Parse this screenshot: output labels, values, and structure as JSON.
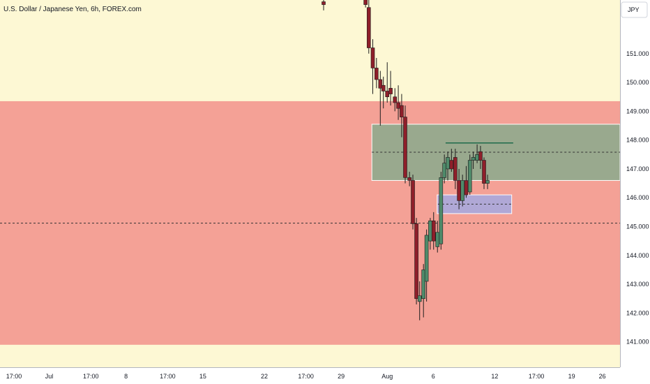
{
  "chart_data": {
    "type": "candlestick",
    "title": "U.S. Dollar / Japanese Yen, 6h, FOREX.com",
    "currency": "JPY",
    "y_ticks": [
      141,
      142,
      143,
      144,
      145,
      146,
      147,
      148,
      149,
      150,
      151
    ],
    "y_tick_labels": [
      "141.000",
      "142.000",
      "143.000",
      "144.000",
      "145.000",
      "146.000",
      "147.000",
      "148.000",
      "149.000",
      "150.000",
      "151.000"
    ],
    "ylim": [
      140.12,
      152.86
    ],
    "x_ticks": [
      {
        "label": "17:00",
        "day": -9.29
      },
      {
        "label": "Jul",
        "day": -7
      },
      {
        "label": "17:00",
        "day": -4.29
      },
      {
        "label": "8",
        "day": -2
      },
      {
        "label": "17:00",
        "day": 0.71
      },
      {
        "label": "15",
        "day": 3
      },
      {
        "label": "22",
        "day": 7
      },
      {
        "label": "17:00",
        "day": 9.71
      },
      {
        "label": "29",
        "day": 12
      },
      {
        "label": "Aug",
        "day": 15
      },
      {
        "label": "6",
        "day": 18
      },
      {
        "label": "12",
        "day": 22
      },
      {
        "label": "17:00",
        "day": 24.71
      },
      {
        "label": "19",
        "day": 27
      },
      {
        "label": "26",
        "day": 29
      }
    ],
    "xlim": [
      -10.2,
      30.15
    ],
    "zones": [
      {
        "name": "upper-zone",
        "y_from": 140.9,
        "y_to": 149.35,
        "day_from": -10.2,
        "day_to": 30.15,
        "fill": "#f4a196"
      },
      {
        "name": "resistance-box",
        "y_from": 146.6,
        "y_to": 148.55,
        "day_from": 14.0,
        "day_to": 30.15,
        "fill": "#99a98e"
      },
      {
        "name": "demand-box",
        "y_from": 145.45,
        "y_to": 146.1,
        "day_from": 18.25,
        "day_to": 23.1,
        "fill": "#b0a8d6"
      }
    ],
    "levels": [
      {
        "name": "dashed-level-low",
        "y": 145.12,
        "day_from": -10.2,
        "day_to": 30.15
      },
      {
        "name": "dashed-level-box",
        "y": 147.58,
        "day_from": 14.0,
        "day_to": 30.15
      },
      {
        "name": "dashed-level-demand",
        "y": 145.78,
        "day_from": 18.3,
        "day_to": 23.1
      }
    ],
    "horizontal_segment": {
      "y": 147.9,
      "day_from": 18.8,
      "day_to": 23.2,
      "color": "#1e6b4b"
    },
    "candles": [
      {
        "d": 10.86,
        "o": 152.8,
        "h": 152.86,
        "l": 152.5,
        "c": 152.7
      },
      {
        "d": 13.59,
        "o": 152.9,
        "h": 152.86,
        "l": 152.6,
        "c": 152.7
      },
      {
        "d": 13.8,
        "o": 152.6,
        "h": 152.86,
        "l": 151.0,
        "c": 151.2
      },
      {
        "d": 14.06,
        "o": 151.2,
        "h": 151.5,
        "l": 149.6,
        "c": 150.5
      },
      {
        "d": 14.3,
        "o": 150.5,
        "h": 150.85,
        "l": 149.8,
        "c": 150.1
      },
      {
        "d": 14.55,
        "o": 150.1,
        "h": 150.4,
        "l": 148.5,
        "c": 149.8
      },
      {
        "d": 14.75,
        "o": 149.9,
        "h": 150.2,
        "l": 149.1,
        "c": 149.7
      },
      {
        "d": 15.0,
        "o": 149.7,
        "h": 150.7,
        "l": 149.3,
        "c": 149.5
      },
      {
        "d": 15.22,
        "o": 149.8,
        "h": 150.4,
        "l": 149.2,
        "c": 149.6
      },
      {
        "d": 15.5,
        "o": 149.5,
        "h": 149.8,
        "l": 149.0,
        "c": 149.3
      },
      {
        "d": 15.72,
        "o": 149.3,
        "h": 149.9,
        "l": 148.7,
        "c": 149.1
      },
      {
        "d": 15.94,
        "o": 149.2,
        "h": 149.6,
        "l": 148.1,
        "c": 148.8
      },
      {
        "d": 16.17,
        "o": 148.8,
        "h": 149.2,
        "l": 146.5,
        "c": 146.7
      },
      {
        "d": 16.45,
        "o": 146.7,
        "h": 146.9,
        "l": 146.4,
        "c": 146.6
      },
      {
        "d": 16.67,
        "o": 146.6,
        "h": 146.8,
        "l": 144.9,
        "c": 145.1
      },
      {
        "d": 16.9,
        "o": 145.1,
        "h": 145.3,
        "l": 142.3,
        "c": 142.5
      },
      {
        "d": 17.11,
        "o": 142.4,
        "h": 143.1,
        "l": 141.75,
        "c": 142.6
      },
      {
        "d": 17.36,
        "o": 142.5,
        "h": 143.7,
        "l": 141.85,
        "c": 143.5
      },
      {
        "d": 17.56,
        "o": 143.1,
        "h": 144.9,
        "l": 142.4,
        "c": 144.7
      },
      {
        "d": 17.8,
        "o": 144.5,
        "h": 145.3,
        "l": 144.2,
        "c": 145.2
      },
      {
        "d": 18.02,
        "o": 145.2,
        "h": 145.5,
        "l": 144.2,
        "c": 144.5
      },
      {
        "d": 18.27,
        "o": 144.3,
        "h": 145.2,
        "l": 144.1,
        "c": 144.8
      },
      {
        "d": 18.5,
        "o": 144.4,
        "h": 146.9,
        "l": 144.2,
        "c": 146.7
      },
      {
        "d": 18.72,
        "o": 146.7,
        "h": 147.5,
        "l": 146.5,
        "c": 147.2
      },
      {
        "d": 18.94,
        "o": 147.0,
        "h": 147.6,
        "l": 146.6,
        "c": 147.4
      },
      {
        "d": 19.18,
        "o": 147.3,
        "h": 147.7,
        "l": 146.9,
        "c": 147.0
      },
      {
        "d": 19.43,
        "o": 147.4,
        "h": 147.7,
        "l": 146.3,
        "c": 146.6
      },
      {
        "d": 19.67,
        "o": 146.6,
        "h": 147.0,
        "l": 145.6,
        "c": 145.9
      },
      {
        "d": 19.9,
        "o": 145.9,
        "h": 146.8,
        "l": 145.7,
        "c": 146.6
      },
      {
        "d": 20.14,
        "o": 146.6,
        "h": 147.1,
        "l": 146.0,
        "c": 146.1
      },
      {
        "d": 20.38,
        "o": 146.2,
        "h": 147.5,
        "l": 146.1,
        "c": 147.3
      },
      {
        "d": 20.6,
        "o": 147.3,
        "h": 147.6,
        "l": 147.0,
        "c": 147.4
      },
      {
        "d": 20.85,
        "o": 147.3,
        "h": 147.85,
        "l": 147.2,
        "c": 147.5
      },
      {
        "d": 21.07,
        "o": 147.6,
        "h": 147.8,
        "l": 147.0,
        "c": 147.3
      },
      {
        "d": 21.3,
        "o": 147.3,
        "h": 147.4,
        "l": 146.3,
        "c": 146.5
      },
      {
        "d": 21.53,
        "o": 146.5,
        "h": 146.8,
        "l": 146.3,
        "c": 146.6
      }
    ]
  }
}
